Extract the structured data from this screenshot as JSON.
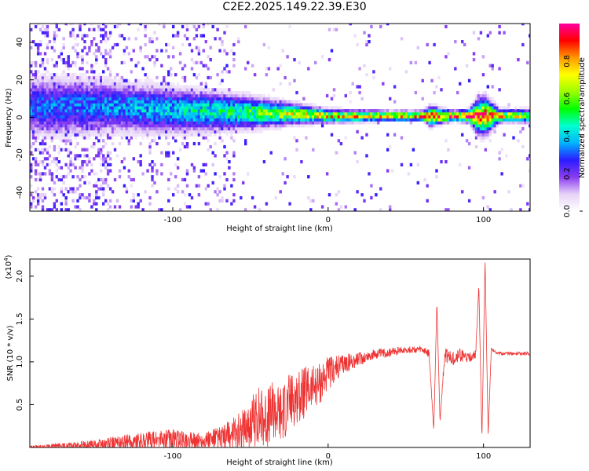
{
  "title": "C2E2.2025.149.22.39.E30",
  "chart_data": [
    {
      "type": "heatmap",
      "xlabel": "Height of straight line (km)",
      "ylabel": "Frequency (Hz)",
      "xlim": [
        -192,
        130
      ],
      "ylim": [
        -50,
        50
      ],
      "x_ticks": [
        -100,
        0,
        100
      ],
      "y_ticks": [
        -40,
        -20,
        0,
        20,
        40
      ],
      "colorbar": {
        "label": "Normalized spectral amplitude",
        "range": [
          0,
          1
        ],
        "ticks": [
          "0.0",
          "0.2",
          "0.4",
          "0.6",
          "0.8"
        ],
        "colormap": [
          "#ffffff",
          "#e6d2f7",
          "#8a3cf0",
          "#2a1cff",
          "#00b4ff",
          "#00ffd0",
          "#00ff00",
          "#9bff00",
          "#ffff00",
          "#ff9900",
          "#ff0000",
          "#ff00a0"
        ]
      },
      "ridge": {
        "x": [
          -170,
          -140,
          -100,
          -60,
          -20,
          0,
          40,
          60,
          65,
          80,
          90,
          95,
          100,
          110,
          130
        ],
        "center_freq": [
          5,
          5,
          3,
          2,
          1,
          0,
          0,
          0,
          0,
          0,
          0,
          0,
          0,
          0,
          0
        ],
        "width_hz": [
          18,
          16,
          14,
          11,
          6,
          4,
          3,
          3,
          6,
          3,
          4,
          10,
          12,
          4,
          4
        ],
        "peak_amplitude": [
          0.35,
          0.38,
          0.45,
          0.55,
          0.75,
          0.8,
          0.85,
          0.9,
          0.95,
          0.95,
          1.0,
          0.95,
          0.9,
          0.8,
          0.7
        ]
      }
    },
    {
      "type": "line",
      "xlabel": "Height of straight line (km)",
      "ylabel": "SNR (10 * v/v)",
      "multiplier_label": "(x10",
      "multiplier_exp": "4",
      "xlim": [
        -192,
        130
      ],
      "ylim": [
        0,
        2.2
      ],
      "x_ticks": [
        -100,
        0,
        100
      ],
      "y_ticks": [
        "0.5",
        "1.0",
        "1.5",
        "2.0"
      ],
      "y_tick_values": [
        0.5,
        1.0,
        1.5,
        2.0
      ],
      "line_color": "#ee3333",
      "series": [
        {
          "x": [
            -192,
            -160,
            -140,
            -120,
            -100,
            -90,
            -80,
            -70,
            -60,
            -50,
            -45,
            -40,
            -35,
            -30,
            -25,
            -20,
            -15,
            -10,
            -5,
            0,
            5,
            10,
            20,
            30,
            40,
            50,
            60,
            65,
            68,
            70,
            72,
            75,
            80,
            85,
            90,
            95,
            97,
            99,
            101,
            103,
            105,
            110,
            120,
            130
          ],
          "y": [
            0.01,
            0.03,
            0.06,
            0.1,
            0.12,
            0.1,
            0.1,
            0.12,
            0.2,
            0.35,
            0.45,
            0.4,
            0.5,
            0.45,
            0.6,
            0.65,
            0.7,
            0.75,
            0.8,
            0.9,
            0.95,
            1.0,
            1.05,
            1.1,
            1.12,
            1.15,
            1.15,
            1.1,
            0.2,
            1.7,
            0.3,
            1.1,
            1.05,
            1.1,
            1.05,
            1.1,
            1.9,
            0.1,
            2.2,
            0.15,
            1.15,
            1.1,
            1.1,
            1.1
          ],
          "noise_amplitude": [
            0.01,
            0.05,
            0.08,
            0.1,
            0.12,
            0.1,
            0.1,
            0.15,
            0.2,
            0.3,
            0.35,
            0.35,
            0.35,
            0.35,
            0.35,
            0.3,
            0.3,
            0.25,
            0.25,
            0.2,
            0.15,
            0.12,
            0.08,
            0.06,
            0.05,
            0.04,
            0.04,
            0.05,
            0.0,
            0.0,
            0.0,
            0.08,
            0.08,
            0.08,
            0.06,
            0.05,
            0.0,
            0.0,
            0.0,
            0.0,
            0.02,
            0.02,
            0.02,
            0.02
          ]
        }
      ]
    }
  ]
}
